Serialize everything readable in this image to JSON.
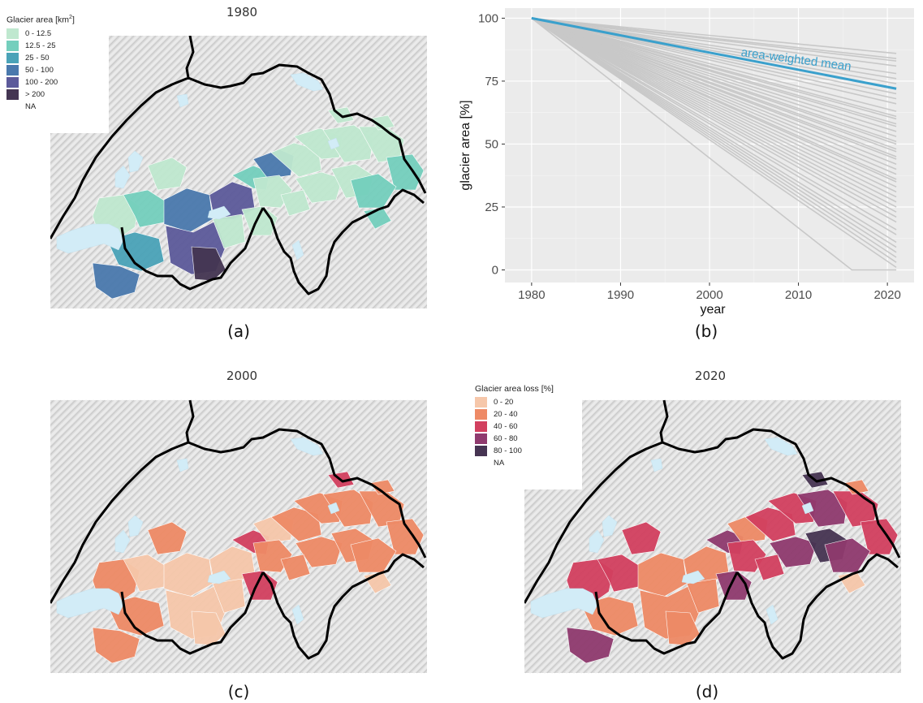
{
  "panel_a": {
    "title": "1980",
    "label": "(a)",
    "legend": {
      "title_prefix": "Glacier area [km",
      "title_sup": "2",
      "title_suffix": "]",
      "items": [
        {
          "label": "0 - 12.5",
          "color": "#bfe8cf"
        },
        {
          "label": "12.5 - 25",
          "color": "#74cfbd"
        },
        {
          "label": "25 - 50",
          "color": "#4aa3b8"
        },
        {
          "label": "50 - 100",
          "color": "#4a79ad"
        },
        {
          "label": "100 - 200",
          "color": "#5c5a9a"
        },
        {
          "label": "> 200",
          "color": "#443552"
        }
      ],
      "na_label": "NA"
    }
  },
  "panel_b": {
    "label": "(b)",
    "annotation": "area-weighted mean",
    "mean_color": "#3aa0cc",
    "line_color": "#c8c8c8"
  },
  "panel_c": {
    "title": "2000",
    "label": "(c)"
  },
  "panel_d": {
    "title": "2020",
    "label": "(d)",
    "legend": {
      "title": "Glacier area loss [%]",
      "items": [
        {
          "label": "0 - 20",
          "color": "#f6c7aa"
        },
        {
          "label": "20 - 40",
          "color": "#ee8a66"
        },
        {
          "label": "40 - 60",
          "color": "#d2405f"
        },
        {
          "label": "60 - 80",
          "color": "#8f3a6e"
        },
        {
          "label": "80 - 100",
          "color": "#463452"
        }
      ],
      "na_label": "NA"
    }
  },
  "chart_data": {
    "type": "line",
    "xlabel": "year",
    "ylabel": "glacier area [%]",
    "xlim": [
      1977,
      2023
    ],
    "ylim": [
      -5,
      104
    ],
    "xticks": [
      1980,
      1990,
      2000,
      2010,
      2020
    ],
    "yticks": [
      0,
      25,
      50,
      75,
      100
    ],
    "grid": true,
    "series": [
      {
        "name": "area-weighted mean",
        "x": [
          1980,
          2021
        ],
        "y": [
          100,
          72
        ]
      }
    ],
    "catchment_endpoints_2021": [
      86,
      84,
      83,
      81,
      78,
      76,
      74,
      70,
      68,
      66,
      63,
      61,
      60,
      58,
      57,
      55,
      53,
      51,
      50,
      48,
      47,
      45,
      44,
      42,
      40,
      38,
      36,
      35,
      33,
      31,
      29,
      27,
      25,
      23,
      21,
      19,
      16,
      14,
      11,
      9,
      7,
      5,
      3,
      1
    ],
    "zero_reach": {
      "year": 2016,
      "value": 0
    }
  }
}
